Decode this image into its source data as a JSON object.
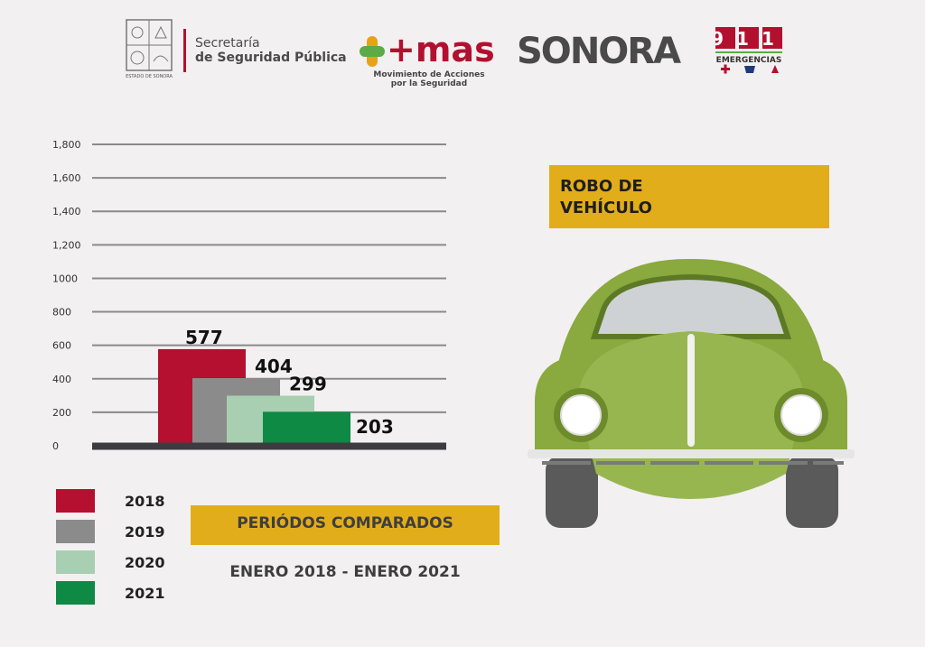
{
  "header": {
    "secretaria_line1": "Secretaría",
    "secretaria_line2": "de Seguridad Pública",
    "seal_caption": "ESTADO DE SONORA",
    "mas_logo": "+mas",
    "mas_subtitle_line1": "Movimiento de Acciones",
    "mas_subtitle_line2": "por la Seguridad",
    "sonora_logo": "SONORA",
    "emergency_number": "911",
    "emergency_label": "EMERGENCIAS"
  },
  "title": {
    "line1": "ROBO DE",
    "line2": "VEHÍCULO"
  },
  "periods": {
    "title": "PERIÓDOS COMPARADOS",
    "range": "ENERO 2018 - ENERO 2021"
  },
  "colors": {
    "2018": "#b5102f",
    "2019": "#8c8b8c",
    "2020": "#a8cfb1",
    "2021": "#0e8a45",
    "accent": "#e2ad1a",
    "car_green": "#8aa93e"
  },
  "chart_data": {
    "type": "bar",
    "categories": [
      "2018",
      "2019",
      "2020",
      "2021"
    ],
    "values": [
      577,
      404,
      299,
      203
    ],
    "data_labels": [
      "577",
      "404",
      "299",
      "203"
    ],
    "ylim": [
      0,
      1800
    ],
    "yticks": [
      0,
      200,
      400,
      600,
      800,
      1000,
      1200,
      1400,
      1600,
      1800
    ],
    "ytick_labels": [
      "0",
      "200",
      "400",
      "600",
      "800",
      "1000",
      "1,200",
      "1,400",
      "1,600",
      "1,800"
    ],
    "grid": true,
    "legend": {
      "position": "bottom-left",
      "entries": [
        "2018",
        "2019",
        "2020",
        "2021"
      ]
    }
  }
}
